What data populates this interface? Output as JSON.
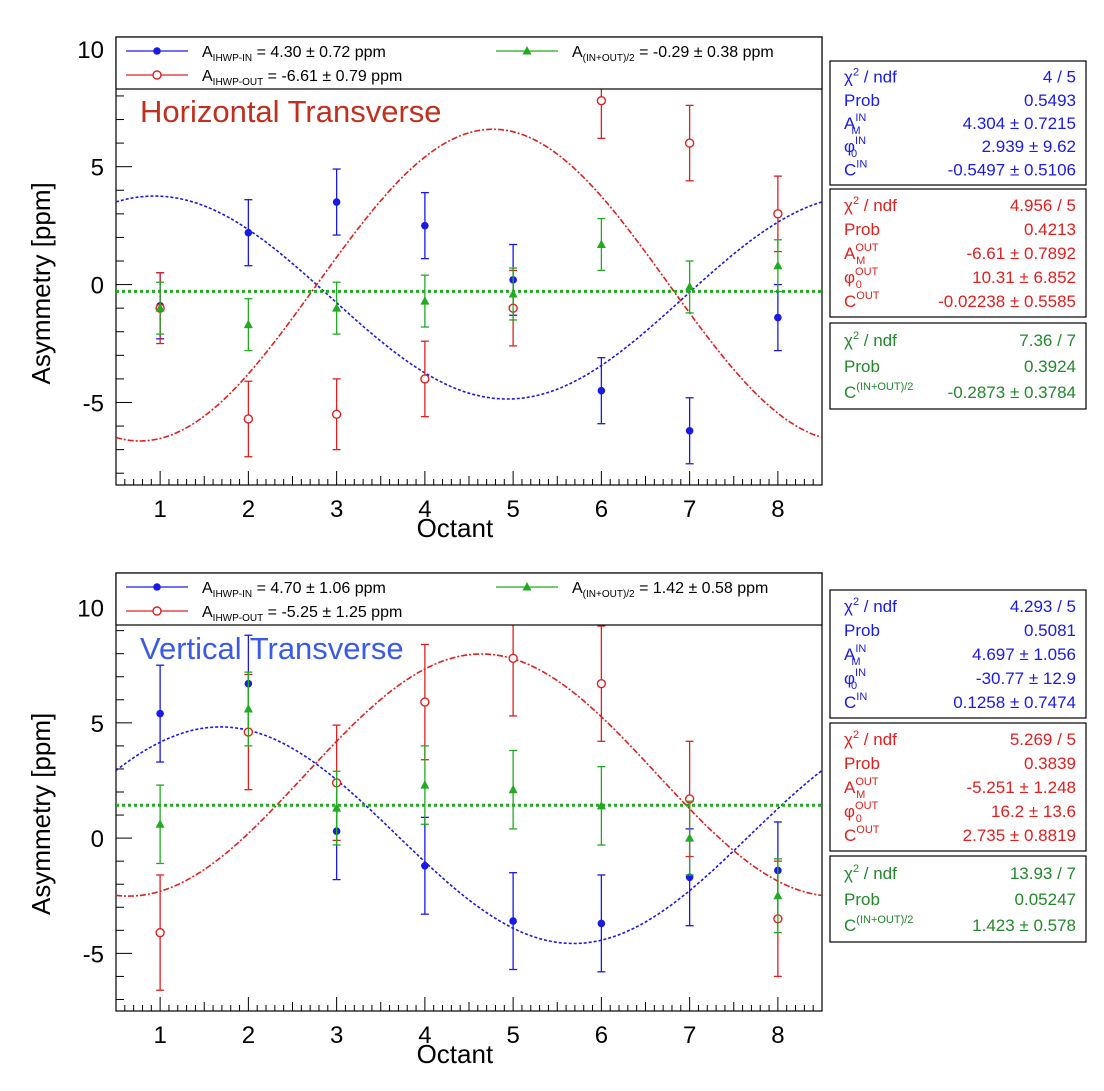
{
  "chart_data": [
    {
      "type": "scatter",
      "title": "Horizontal Transverse",
      "title_color": "#c0301e",
      "xlabel": "Octant",
      "ylabel": "Asymmetry [ppm]",
      "xlim": [
        0.5,
        8.5
      ],
      "ylim": [
        -8.5,
        10.5
      ],
      "x_ticks": [
        1,
        2,
        3,
        4,
        5,
        6,
        7,
        8
      ],
      "y_ticks": [
        -5,
        0,
        5,
        10
      ],
      "grid": false,
      "legend_position": "top",
      "legend": [
        {
          "prefix": "A",
          "sub": "IHWP-IN",
          "text": " = 4.30 ± 0.72 ppm",
          "marker": "filled-circle",
          "color": "#1a1ae6"
        },
        {
          "prefix": "A",
          "sub": "(IN+OUT)/2",
          "text": " = -0.29 ± 0.38 ppm",
          "marker": "triangle",
          "color": "#22aa22"
        },
        {
          "prefix": "A",
          "sub": "IHWP-OUT",
          "text": " = -6.61 ± 0.79 ppm",
          "marker": "open-circle",
          "color": "#e02020"
        }
      ],
      "series": [
        {
          "name": "IHWP-IN",
          "color": "#1a1ae6",
          "marker": "filled-circle",
          "x": [
            1,
            2,
            3,
            4,
            5,
            6,
            7,
            8
          ],
          "y": [
            -0.9,
            2.2,
            3.5,
            2.5,
            0.2,
            -4.5,
            -6.2,
            -1.4
          ],
          "err": [
            1.4,
            1.4,
            1.4,
            1.4,
            1.5,
            1.4,
            1.4,
            1.4
          ]
        },
        {
          "name": "IHWP-OUT",
          "color": "#e02020",
          "marker": "open-circle",
          "x": [
            1,
            2,
            3,
            4,
            5,
            6,
            7,
            8
          ],
          "y": [
            -1.0,
            -5.7,
            -5.5,
            -4.0,
            -1.0,
            7.8,
            6.0,
            3.0
          ],
          "err": [
            1.5,
            1.6,
            1.5,
            1.6,
            1.6,
            1.6,
            1.6,
            1.6
          ]
        },
        {
          "name": "(IN+OUT)/2",
          "color": "#22aa22",
          "marker": "triangle",
          "x": [
            1,
            2,
            3,
            4,
            5,
            6,
            7,
            8
          ],
          "y": [
            -1.0,
            -1.7,
            -1.0,
            -0.7,
            -0.4,
            1.7,
            -0.1,
            0.8
          ],
          "err": [
            1.1,
            1.1,
            1.1,
            1.1,
            1.1,
            1.1,
            1.1,
            1.1
          ]
        }
      ],
      "fits": [
        {
          "kind": "cos",
          "color": "#1a1ae6",
          "dash": "3,2",
          "A": 4.304,
          "phi_deg": 2.939,
          "C": -0.5497
        },
        {
          "kind": "cos",
          "color": "#e02020",
          "dash": "6,2,2,2",
          "A": -6.61,
          "phi_deg": 10.31,
          "C": -0.02238
        },
        {
          "kind": "const",
          "color": "#22aa22",
          "dash": "3,3",
          "C": -0.2873
        }
      ],
      "stat_boxes": [
        {
          "color": "#1a1ae6",
          "rows": [
            {
              "label_html": "χ<tspan baseline-shift='super' font-size='11'>2</tspan> / ndf",
              "label": "χ2 / ndf",
              "value": "4 / 5"
            },
            {
              "label": "Prob",
              "value": "0.5493"
            },
            {
              "label": "A_M^IN",
              "value": "4.304 ± 0.7215"
            },
            {
              "label": "φ_0^IN",
              "value": "2.939 ± 9.62"
            },
            {
              "label": "C^IN",
              "value": "-0.5497 ± 0.5106"
            }
          ]
        },
        {
          "color": "#e02020",
          "rows": [
            {
              "label": "χ2 / ndf",
              "value": "4.956 / 5"
            },
            {
              "label": "Prob",
              "value": "0.4213"
            },
            {
              "label": "A_M^OUT",
              "value": "-6.61 ± 0.7892"
            },
            {
              "label": "φ_0^OUT",
              "value": "10.31 ± 6.852"
            },
            {
              "label": "C^OUT",
              "value": "-0.02238 ± 0.5585"
            }
          ]
        },
        {
          "color": "#22882a",
          "rows": [
            {
              "label": "χ2 / ndf",
              "value": "7.36 / 7"
            },
            {
              "label": "Prob",
              "value": "0.3924"
            },
            {
              "label": "C^(IN+OUT)/2",
              "value": "-0.2873 ± 0.3784"
            }
          ]
        }
      ]
    },
    {
      "type": "scatter",
      "title": "Vertical Transverse",
      "title_color": "#3a5ae8",
      "xlabel": "Octant",
      "ylabel": "Asymmetry [ppm]",
      "xlim": [
        0.5,
        8.5
      ],
      "ylim": [
        -7.5,
        11.5
      ],
      "x_ticks": [
        1,
        2,
        3,
        4,
        5,
        6,
        7,
        8
      ],
      "y_ticks": [
        -5,
        0,
        5,
        10
      ],
      "grid": false,
      "legend_position": "top",
      "legend": [
        {
          "prefix": "A",
          "sub": "IHWP-IN",
          "text": " = 4.70 ± 1.06 ppm",
          "marker": "filled-circle",
          "color": "#1a1ae6"
        },
        {
          "prefix": "A",
          "sub": "(IN+OUT)/2",
          "text": " = 1.42 ± 0.58 ppm",
          "marker": "triangle",
          "color": "#22aa22"
        },
        {
          "prefix": "A",
          "sub": "IHWP-OUT",
          "text": " = -5.25 ± 1.25 ppm",
          "marker": "open-circle",
          "color": "#e02020"
        }
      ],
      "series": [
        {
          "name": "IHWP-IN",
          "color": "#1a1ae6",
          "marker": "filled-circle",
          "x": [
            1,
            2,
            3,
            4,
            5,
            6,
            7,
            8
          ],
          "y": [
            5.4,
            6.7,
            0.3,
            -1.2,
            -3.6,
            -3.7,
            -1.7,
            -1.4
          ],
          "err": [
            2.1,
            2.1,
            2.1,
            2.1,
            2.1,
            2.1,
            2.1,
            2.1
          ]
        },
        {
          "name": "IHWP-OUT",
          "color": "#e02020",
          "marker": "open-circle",
          "x": [
            1,
            2,
            3,
            4,
            5,
            6,
            7,
            8
          ],
          "y": [
            -4.1,
            4.6,
            2.4,
            5.9,
            7.8,
            6.7,
            1.7,
            -3.5
          ],
          "err": [
            2.5,
            2.5,
            2.5,
            2.5,
            2.5,
            2.5,
            2.5,
            2.5
          ]
        },
        {
          "name": "(IN+OUT)/2",
          "color": "#22aa22",
          "marker": "triangle",
          "x": [
            1,
            2,
            3,
            4,
            5,
            6,
            7,
            8
          ],
          "y": [
            0.6,
            5.6,
            1.3,
            2.3,
            2.1,
            1.4,
            0.0,
            -2.5
          ],
          "err": [
            1.7,
            1.6,
            1.6,
            1.7,
            1.7,
            1.7,
            1.6,
            1.6
          ]
        }
      ],
      "fits": [
        {
          "kind": "cos",
          "color": "#1a1ae6",
          "dash": "3,2",
          "A": 4.697,
          "phi_deg": -30.77,
          "C": 0.1258
        },
        {
          "kind": "cos",
          "color": "#e02020",
          "dash": "6,2,2,2",
          "A": -5.251,
          "phi_deg": 16.2,
          "C": 2.735
        },
        {
          "kind": "const",
          "color": "#22aa22",
          "dash": "3,3",
          "C": 1.423
        }
      ],
      "stat_boxes": [
        {
          "color": "#1a1ae6",
          "rows": [
            {
              "label": "χ2 / ndf",
              "value": "4.293 / 5"
            },
            {
              "label": "Prob",
              "value": "0.5081"
            },
            {
              "label": "A_M^IN",
              "value": "4.697 ± 1.056"
            },
            {
              "label": "φ_0^IN",
              "value": "-30.77 ± 12.9"
            },
            {
              "label": "C^IN",
              "value": "0.1258 ± 0.7474"
            }
          ]
        },
        {
          "color": "#e02020",
          "rows": [
            {
              "label": "χ2 / ndf",
              "value": "5.269 / 5"
            },
            {
              "label": "Prob",
              "value": "0.3839"
            },
            {
              "label": "A_M^OUT",
              "value": "-5.251 ± 1.248"
            },
            {
              "label": "φ_0^OUT",
              "value": "16.2 ± 13.6"
            },
            {
              "label": "C^OUT",
              "value": "2.735 ± 0.8819"
            }
          ]
        },
        {
          "color": "#22882a",
          "rows": [
            {
              "label": "χ2 / ndf",
              "value": "13.93 / 7"
            },
            {
              "label": "Prob",
              "value": "0.05247"
            },
            {
              "label": "C^(IN+OUT)/2",
              "value": "1.423 ± 0.578"
            }
          ]
        }
      ]
    }
  ]
}
